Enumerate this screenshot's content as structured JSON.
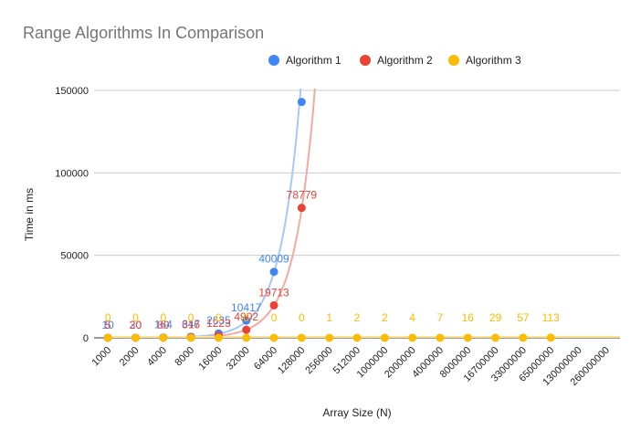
{
  "chart_data": {
    "type": "scatter",
    "title": "Range Algorithms In Comparison",
    "xlabel": "Array Size (N)",
    "ylabel": "Time in ms",
    "ylim": [
      0,
      150000
    ],
    "yticks": [
      "0",
      "50000",
      "100000",
      "150000"
    ],
    "categories": [
      "1000",
      "2000",
      "4000",
      "8000",
      "16000",
      "32000",
      "64000",
      "128000",
      "256000",
      "512000",
      "1000000",
      "2000000",
      "4000000",
      "8000000",
      "16700000",
      "33000000",
      "65000000",
      "130000000",
      "260000000"
    ],
    "grid": true,
    "legend_position": "top",
    "trendline": "exponential",
    "series": [
      {
        "name": "Algorithm 1",
        "color": "#4285f4",
        "trend_color": "#a8c7fa",
        "values": [
          10,
          30,
          164,
          647,
          2635,
          10417,
          40009,
          143000,
          null,
          null,
          null,
          null,
          null,
          null,
          null,
          null,
          null,
          null,
          null
        ],
        "labels": [
          "10",
          "30",
          "164",
          "647",
          "2635",
          "10417",
          "40009",
          "",
          "",
          "",
          "",
          "",
          "",
          "",
          "",
          "",
          "",
          "",
          ""
        ]
      },
      {
        "name": "Algorithm 2",
        "color": "#ea4335",
        "trend_color": "#f4a9a3",
        "values": [
          5,
          20,
          80,
          316,
          1223,
          4902,
          19713,
          78779,
          null,
          null,
          null,
          null,
          null,
          null,
          null,
          null,
          null,
          null,
          null
        ],
        "labels": [
          "5",
          "20",
          "80",
          "316",
          "1223",
          "4902",
          "19713",
          "78779",
          "",
          "",
          "",
          "",
          "",
          "",
          "",
          "",
          "",
          "",
          ""
        ]
      },
      {
        "name": "Algorithm 3",
        "color": "#fbbc04",
        "trend_color": "#fde293",
        "values": [
          0,
          0,
          0,
          0,
          0,
          0,
          0,
          0,
          1,
          2,
          2,
          4,
          7,
          16,
          29,
          57,
          113,
          null,
          null
        ],
        "labels": [
          "0",
          "0",
          "0",
          "0",
          "0",
          "0",
          "0",
          "0",
          "1",
          "2",
          "2",
          "4",
          "7",
          "16",
          "29",
          "57",
          "113",
          "",
          ""
        ]
      }
    ]
  }
}
